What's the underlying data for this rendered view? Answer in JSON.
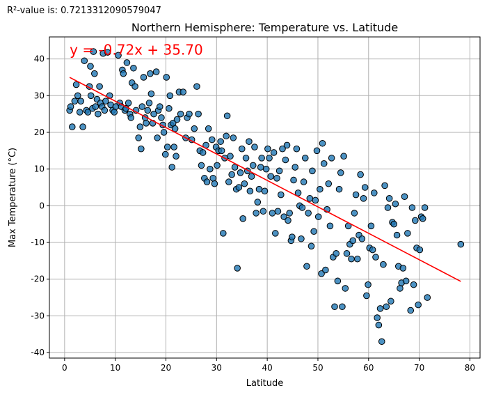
{
  "header": {
    "r2_text": "R²-value is: 0.7213312090579047"
  },
  "chart_data": {
    "type": "scatter",
    "title": "Northern Hemisphere: Temperature vs. Latitude",
    "xlabel": "Latitude",
    "ylabel": "Max Temperature (°C)",
    "xlim": [
      -3,
      82
    ],
    "ylim": [
      -41.5,
      46
    ],
    "xticks": [
      0,
      10,
      20,
      30,
      40,
      50,
      60,
      70,
      80
    ],
    "yticks": [
      -40,
      -30,
      -20,
      -10,
      0,
      10,
      20,
      30,
      40
    ],
    "grid": true,
    "point_color": "#1f77b4",
    "point_edge": "#000000",
    "line_color": "#ff0000",
    "regression": {
      "slope": -0.72,
      "intercept": 35.7,
      "x_range": [
        1,
        78.2
      ],
      "equation": "y = -0.72x + 35.70"
    },
    "points": [
      [
        1,
        26
      ],
      [
        1.2,
        27
      ],
      [
        1.5,
        21.5
      ],
      [
        2,
        28.5
      ],
      [
        2.3,
        33
      ],
      [
        2.6,
        30
      ],
      [
        3,
        25.5
      ],
      [
        3.2,
        28.5
      ],
      [
        3.6,
        21.5
      ],
      [
        3.9,
        39.5
      ],
      [
        4.3,
        26
      ],
      [
        4.6,
        25.5
      ],
      [
        4.9,
        32.5
      ],
      [
        5.1,
        38
      ],
      [
        5.2,
        30
      ],
      [
        5.5,
        26.5
      ],
      [
        5.7,
        42
      ],
      [
        5.9,
        36
      ],
      [
        6.1,
        27
      ],
      [
        6.4,
        29
      ],
      [
        6.6,
        25
      ],
      [
        6.9,
        32.5
      ],
      [
        7.1,
        28
      ],
      [
        7.4,
        27
      ],
      [
        7.6,
        41.5
      ],
      [
        7.9,
        26
      ],
      [
        8.1,
        28.5
      ],
      [
        8.5,
        41.8
      ],
      [
        8.9,
        30
      ],
      [
        9.1,
        27.5
      ],
      [
        9.5,
        26
      ],
      [
        9.8,
        25.5
      ],
      [
        10.1,
        27
      ],
      [
        10.6,
        41
      ],
      [
        10.9,
        28
      ],
      [
        11.2,
        27
      ],
      [
        11.4,
        37
      ],
      [
        11.6,
        36
      ],
      [
        11.9,
        26
      ],
      [
        12.1,
        26.5
      ],
      [
        12.3,
        39
      ],
      [
        12.6,
        28
      ],
      [
        12.9,
        25
      ],
      [
        13.1,
        24
      ],
      [
        13.3,
        33.5
      ],
      [
        13.6,
        37.5
      ],
      [
        13.9,
        32.5
      ],
      [
        14.1,
        26
      ],
      [
        14.6,
        18.5
      ],
      [
        14.9,
        21.5
      ],
      [
        15.1,
        15.5
      ],
      [
        15.3,
        27
      ],
      [
        15.6,
        35
      ],
      [
        15.9,
        24
      ],
      [
        16.1,
        22.5
      ],
      [
        16.4,
        26
      ],
      [
        16.7,
        28
      ],
      [
        16.9,
        36
      ],
      [
        17.1,
        30.5
      ],
      [
        17.4,
        22.5
      ],
      [
        17.6,
        25
      ],
      [
        18.1,
        36.5
      ],
      [
        18.3,
        18.5
      ],
      [
        18.5,
        26
      ],
      [
        18.8,
        27
      ],
      [
        19.1,
        24
      ],
      [
        19.4,
        22
      ],
      [
        19.6,
        20
      ],
      [
        19.9,
        14
      ],
      [
        20.1,
        35
      ],
      [
        20.3,
        16
      ],
      [
        20.6,
        26.5
      ],
      [
        20.8,
        30
      ],
      [
        21,
        22
      ],
      [
        21.2,
        10.5
      ],
      [
        21.4,
        22.5
      ],
      [
        21.6,
        16
      ],
      [
        21.8,
        21
      ],
      [
        22,
        13.5
      ],
      [
        22.2,
        23.5
      ],
      [
        22.6,
        31
      ],
      [
        22.9,
        25
      ],
      [
        23.4,
        31
      ],
      [
        23.9,
        18.5
      ],
      [
        24.2,
        24
      ],
      [
        24.6,
        25
      ],
      [
        25.1,
        18
      ],
      [
        25.6,
        21
      ],
      [
        26.1,
        32.5
      ],
      [
        26.4,
        25
      ],
      [
        26.7,
        15
      ],
      [
        27,
        11
      ],
      [
        27.3,
        14.5
      ],
      [
        27.6,
        7.5
      ],
      [
        27.9,
        16.5
      ],
      [
        28.1,
        6.5
      ],
      [
        28.4,
        21
      ],
      [
        28.7,
        10
      ],
      [
        29.1,
        18
      ],
      [
        29.3,
        7.5
      ],
      [
        29.6,
        6
      ],
      [
        29.9,
        16
      ],
      [
        30.1,
        11
      ],
      [
        30.4,
        15
      ],
      [
        30.8,
        17.5
      ],
      [
        31,
        15
      ],
      [
        31.3,
        -7.5
      ],
      [
        31.6,
        13
      ],
      [
        31.9,
        19
      ],
      [
        32.1,
        24.5
      ],
      [
        32.4,
        6.5
      ],
      [
        32.7,
        13.5
      ],
      [
        33,
        8.5
      ],
      [
        33.3,
        18.5
      ],
      [
        33.6,
        10.5
      ],
      [
        33.9,
        4.5
      ],
      [
        34.1,
        -17
      ],
      [
        34.4,
        5
      ],
      [
        34.7,
        9
      ],
      [
        35,
        15.5
      ],
      [
        35.2,
        -3.5
      ],
      [
        35.5,
        6
      ],
      [
        35.8,
        13
      ],
      [
        36.1,
        9.5
      ],
      [
        36.4,
        17.5
      ],
      [
        36.6,
        4
      ],
      [
        36.9,
        8
      ],
      [
        37.2,
        11
      ],
      [
        37.5,
        16
      ],
      [
        37.8,
        -2
      ],
      [
        38.1,
        1
      ],
      [
        38.4,
        4.5
      ],
      [
        38.7,
        10.5
      ],
      [
        38.9,
        13
      ],
      [
        39.2,
        -1.5
      ],
      [
        39.5,
        4
      ],
      [
        39.8,
        10
      ],
      [
        40.1,
        15.5
      ],
      [
        40.4,
        13
      ],
      [
        40.7,
        8
      ],
      [
        41,
        -2
      ],
      [
        41.3,
        14.5
      ],
      [
        41.6,
        -7.5
      ],
      [
        41.9,
        7.5
      ],
      [
        42.1,
        -1.5
      ],
      [
        42.4,
        9.5
      ],
      [
        42.7,
        3
      ],
      [
        43,
        15.5
      ],
      [
        43.3,
        -3
      ],
      [
        43.6,
        12.5
      ],
      [
        43.9,
        16.5
      ],
      [
        44.1,
        -4
      ],
      [
        44.4,
        -2
      ],
      [
        44.7,
        -9.5
      ],
      [
        44.9,
        -8.5
      ],
      [
        45.2,
        7
      ],
      [
        45.5,
        10.5
      ],
      [
        45.8,
        15.5
      ],
      [
        46.1,
        3.5
      ],
      [
        46.4,
        0
      ],
      [
        46.7,
        -9
      ],
      [
        46.9,
        -0.5
      ],
      [
        47.2,
        6.5
      ],
      [
        47.5,
        13
      ],
      [
        47.8,
        -16.5
      ],
      [
        48.1,
        -2
      ],
      [
        48.4,
        2
      ],
      [
        48.7,
        -11
      ],
      [
        48.9,
        9.5
      ],
      [
        49.2,
        -7
      ],
      [
        49.5,
        1.5
      ],
      [
        49.8,
        15
      ],
      [
        50.1,
        -3
      ],
      [
        50.4,
        4.5
      ],
      [
        50.7,
        -18.5
      ],
      [
        50.9,
        17
      ],
      [
        51.2,
        11.5
      ],
      [
        51.5,
        -17.5
      ],
      [
        51.8,
        -1
      ],
      [
        52.1,
        6
      ],
      [
        52.4,
        -5.5
      ],
      [
        52.7,
        13
      ],
      [
        53,
        -14
      ],
      [
        53.3,
        -27.5
      ],
      [
        53.6,
        -13
      ],
      [
        53.9,
        -20.5
      ],
      [
        54.2,
        4.5
      ],
      [
        54.5,
        9
      ],
      [
        54.8,
        -27.5
      ],
      [
        55.1,
        13.5
      ],
      [
        55.4,
        -22.5
      ],
      [
        55.7,
        -13
      ],
      [
        56,
        -5.5
      ],
      [
        56.3,
        -10.5
      ],
      [
        56.6,
        -14.5
      ],
      [
        56.9,
        -9.5
      ],
      [
        57.2,
        -2
      ],
      [
        57.5,
        3
      ],
      [
        57.8,
        -14.5
      ],
      [
        58.1,
        -8
      ],
      [
        58.4,
        8.5
      ],
      [
        58.7,
        -9
      ],
      [
        59,
        2
      ],
      [
        59.3,
        5
      ],
      [
        59.6,
        -24.5
      ],
      [
        59.9,
        -21.5
      ],
      [
        60.2,
        -11.5
      ],
      [
        60.5,
        -5.5
      ],
      [
        60.8,
        -12
      ],
      [
        61.1,
        3.5
      ],
      [
        61.4,
        -14
      ],
      [
        61.7,
        -30.5
      ],
      [
        62,
        -32.5
      ],
      [
        62.3,
        -28
      ],
      [
        62.6,
        -37
      ],
      [
        62.9,
        -16
      ],
      [
        63.2,
        5.5
      ],
      [
        63.5,
        -27.5
      ],
      [
        63.8,
        -0.5
      ],
      [
        64.1,
        2
      ],
      [
        64.4,
        -26
      ],
      [
        64.7,
        -4.5
      ],
      [
        65,
        -5
      ],
      [
        65.3,
        0.5
      ],
      [
        65.6,
        -8
      ],
      [
        65.9,
        -16.5
      ],
      [
        66.2,
        -22.5
      ],
      [
        66.5,
        -21
      ],
      [
        66.8,
        -17
      ],
      [
        67.1,
        2.5
      ],
      [
        67.4,
        -20.5
      ],
      [
        67.7,
        -7.5
      ],
      [
        68.3,
        -28.5
      ],
      [
        68.6,
        -0.5
      ],
      [
        68.9,
        -21.5
      ],
      [
        69.2,
        -4
      ],
      [
        69.5,
        -11.5
      ],
      [
        69.8,
        -27
      ],
      [
        70.1,
        -12
      ],
      [
        70.4,
        -3
      ],
      [
        70.7,
        -3.5
      ],
      [
        71.1,
        -0.5
      ],
      [
        71.6,
        -25
      ],
      [
        78.2,
        -10.5
      ]
    ]
  }
}
